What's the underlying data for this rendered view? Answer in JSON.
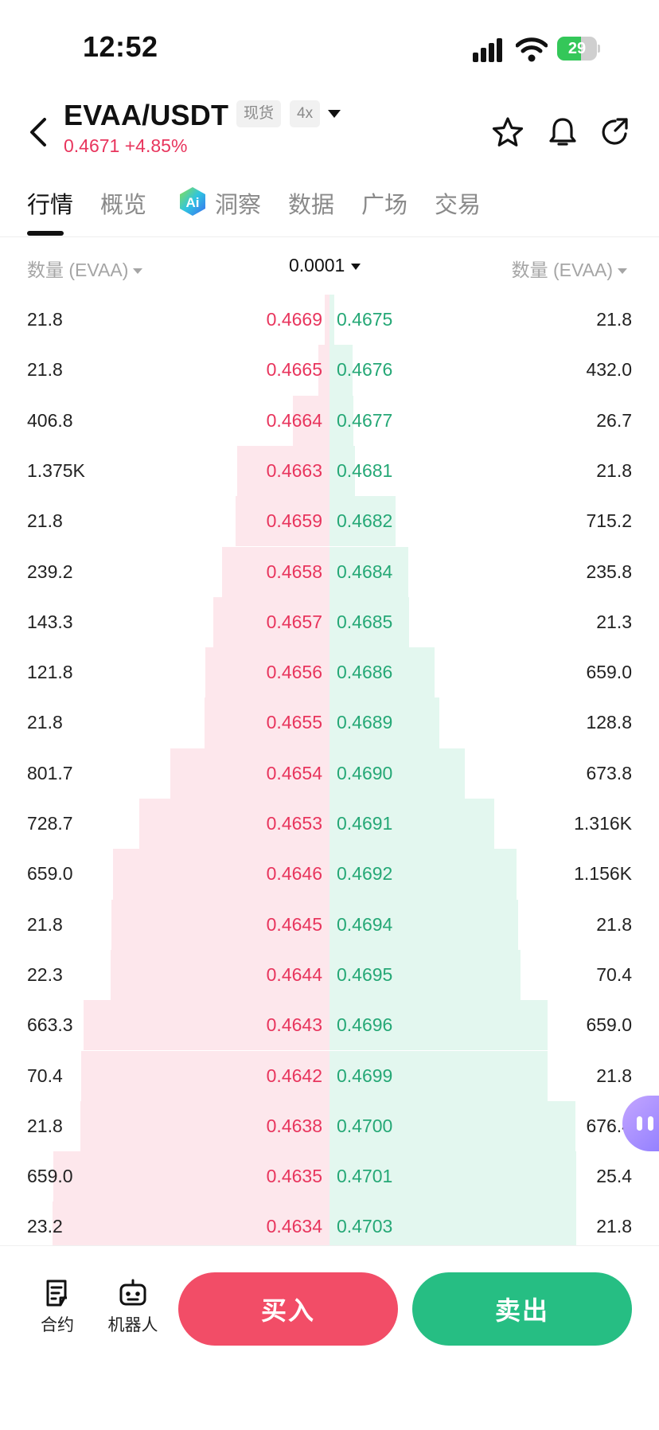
{
  "status_bar": {
    "time": "12:52",
    "battery": "29"
  },
  "header": {
    "pair": "EVAA/USDT",
    "market_tag": "现货",
    "leverage_tag": "4x",
    "price": "0.4671",
    "change": "+4.85%"
  },
  "tabs": [
    {
      "label": "行情"
    },
    {
      "label": "概览"
    },
    {
      "label": "洞察"
    },
    {
      "label": "数据"
    },
    {
      "label": "广场"
    },
    {
      "label": "交易"
    }
  ],
  "orderbook": {
    "left_header": "数量 (EVAA)",
    "precision": "0.0001",
    "right_header": "数量 (EVAA)",
    "colors": {
      "bid": "#e8355d",
      "ask": "#25a876",
      "bid_depth": "#fde7ec",
      "ask_depth": "#e3f7ef"
    },
    "rows": [
      {
        "bid_qty": "21.8",
        "bid_price": "0.4669",
        "ask_price": "0.4675",
        "ask_qty": "21.8",
        "bid_depth": 0.04,
        "ask_depth": 0.04
      },
      {
        "bid_qty": "21.8",
        "bid_price": "0.4665",
        "ask_price": "0.4676",
        "ask_qty": "432.0",
        "bid_depth": 0.09,
        "ask_depth": 0.18
      },
      {
        "bid_qty": "406.8",
        "bid_price": "0.4664",
        "ask_price": "0.4677",
        "ask_qty": "26.7",
        "bid_depth": 0.29,
        "ask_depth": 0.19
      },
      {
        "bid_qty": "1.375K",
        "bid_price": "0.4663",
        "ask_price": "0.4681",
        "ask_qty": "21.8",
        "bid_depth": 0.73,
        "ask_depth": 0.2
      },
      {
        "bid_qty": "21.8",
        "bid_price": "0.4659",
        "ask_price": "0.4682",
        "ask_qty": "715.2",
        "bid_depth": 0.74,
        "ask_depth": 0.52
      },
      {
        "bid_qty": "239.2",
        "bid_price": "0.4658",
        "ask_price": "0.4684",
        "ask_qty": "235.8",
        "bid_depth": 0.85,
        "ask_depth": 0.62
      },
      {
        "bid_qty": "143.3",
        "bid_price": "0.4657",
        "ask_price": "0.4685",
        "ask_qty": "21.3",
        "bid_depth": 0.92,
        "ask_depth": 0.63
      },
      {
        "bid_qty": "121.8",
        "bid_price": "0.4656",
        "ask_price": "0.4686",
        "ask_qty": "659.0",
        "bid_depth": 0.98,
        "ask_depth": 0.83
      },
      {
        "bid_qty": "21.8",
        "bid_price": "0.4655",
        "ask_price": "0.4689",
        "ask_qty": "128.8",
        "bid_depth": 0.99,
        "ask_depth": 0.87
      },
      {
        "bid_qty": "801.7",
        "bid_price": "0.4654",
        "ask_price": "0.4690",
        "ask_qty": "673.8",
        "bid_depth": 1.26,
        "ask_depth": 1.07
      },
      {
        "bid_qty": "728.7",
        "bid_price": "0.4653",
        "ask_price": "0.4691",
        "ask_qty": "1.316K",
        "bid_depth": 1.5,
        "ask_depth": 1.3
      },
      {
        "bid_qty": "659.0",
        "bid_price": "0.4646",
        "ask_price": "0.4692",
        "ask_qty": "1.156K",
        "bid_depth": 1.71,
        "ask_depth": 1.48
      },
      {
        "bid_qty": "21.8",
        "bid_price": "0.4645",
        "ask_price": "0.4694",
        "ask_qty": "21.8",
        "bid_depth": 1.72,
        "ask_depth": 1.49
      },
      {
        "bid_qty": "22.3",
        "bid_price": "0.4644",
        "ask_price": "0.4695",
        "ask_qty": "70.4",
        "bid_depth": 1.73,
        "ask_depth": 1.51
      },
      {
        "bid_qty": "663.3",
        "bid_price": "0.4643",
        "ask_price": "0.4696",
        "ask_qty": "659.0",
        "bid_depth": 1.94,
        "ask_depth": 1.72
      },
      {
        "bid_qty": "70.4",
        "bid_price": "0.4642",
        "ask_price": "0.4699",
        "ask_qty": "21.8",
        "bid_depth": 1.96,
        "ask_depth": 1.72
      },
      {
        "bid_qty": "21.8",
        "bid_price": "0.4638",
        "ask_price": "0.4700",
        "ask_qty": "676.4",
        "bid_depth": 1.97,
        "ask_depth": 1.94
      },
      {
        "bid_qty": "659.0",
        "bid_price": "0.4635",
        "ask_price": "0.4701",
        "ask_qty": "25.4",
        "bid_depth": 2.18,
        "ask_depth": 1.95
      },
      {
        "bid_qty": "23.2",
        "bid_price": "0.4634",
        "ask_price": "0.4703",
        "ask_qty": "21.8",
        "bid_depth": 2.19,
        "ask_depth": 1.95
      }
    ],
    "depth_max": 2.2
  },
  "bottom_bar": {
    "contract_label": "合约",
    "robot_label": "机器人",
    "buy_label": "买入",
    "sell_label": "卖出"
  }
}
